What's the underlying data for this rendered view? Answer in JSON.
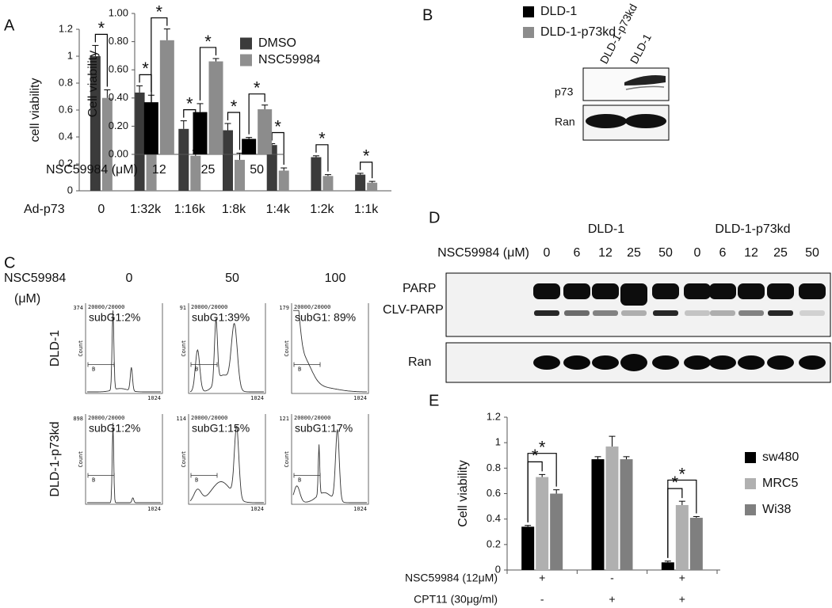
{
  "panel_labels": [
    "A",
    "B",
    "C",
    "D",
    "E"
  ],
  "chart_data": [
    {
      "type": "bar",
      "y_label": "cell viability",
      "x_label": "Ad-p73",
      "categories": [
        "0",
        "1:32k",
        "1:16k",
        "1:8k",
        "1:4k",
        "1:2k",
        "1:1k"
      ],
      "series": [
        {
          "name": "DMSO",
          "color": "#3b3b3b",
          "values": [
            1.0,
            0.73,
            0.46,
            0.45,
            0.34,
            0.25,
            0.12
          ],
          "errors": [
            0.08,
            0.05,
            0.06,
            0.05,
            0.01,
            0.01,
            0.01
          ]
        },
        {
          "name": "NSC59984",
          "color": "#8f8f8f",
          "values": [
            0.69,
            0.48,
            0.26,
            0.23,
            0.15,
            0.11,
            0.06
          ],
          "errors": [
            0.06,
            0.08,
            0.04,
            0.05,
            0.02,
            0.01,
            0.01
          ]
        }
      ],
      "ylim": [
        0,
        1.2
      ],
      "yticks": [
        0,
        0.2,
        0.4,
        0.6,
        0.8,
        1,
        1.2
      ],
      "annotations": [
        "*",
        "*",
        "*",
        "*",
        "*",
        "*",
        "*"
      ]
    },
    {
      "type": "bar",
      "y_label": "Cell viability",
      "x_label": "NSC59984 (μM)",
      "categories": [
        "12",
        "25",
        "50"
      ],
      "series": [
        {
          "name": "DLD-1",
          "color": "#000000",
          "values": [
            0.37,
            0.3,
            0.11
          ],
          "errors": [
            0.05,
            0.06,
            0.01
          ]
        },
        {
          "name": "DLD-1-p73kd",
          "color": "#8c8c8c",
          "values": [
            0.81,
            0.66,
            0.32
          ],
          "errors": [
            0.08,
            0.02,
            0.03
          ]
        }
      ],
      "ylim": [
        0,
        1
      ],
      "yticks": [
        {
          "value": 0,
          "label": "0.00"
        },
        {
          "value": 0.2,
          "label": "0.20"
        },
        {
          "value": 0.4,
          "label": "0.40"
        },
        {
          "value": 0.6,
          "label": "0.60"
        },
        {
          "value": 0.8,
          "label": "0.80"
        },
        {
          "value": 1,
          "label": "1.00"
        }
      ],
      "annotations": [
        "*",
        "*",
        "*"
      ]
    },
    {
      "type": "bar",
      "y_label": "Cell viability",
      "categories": [
        null,
        null,
        null
      ],
      "treatments": [
        {
          "name": "NSC59984  (12μM)",
          "signs": [
            "+",
            "-",
            "+"
          ]
        },
        {
          "name": "CPT11 (30μg/ml)",
          "signs": [
            "-",
            "+",
            "+"
          ]
        }
      ],
      "series": [
        {
          "name": "sw480",
          "color": "#000000",
          "values": [
            0.34,
            0.87,
            0.06
          ],
          "errors": [
            0.01,
            0.02,
            0.01
          ]
        },
        {
          "name": "MRC5",
          "color": "#b0b0b0",
          "values": [
            0.73,
            0.97,
            0.51
          ],
          "errors": [
            0.02,
            0.08,
            0.03
          ]
        },
        {
          "name": "Wi38",
          "color": "#7f7f7f",
          "values": [
            0.6,
            0.87,
            0.41
          ],
          "errors": [
            0.03,
            0.02,
            0.01
          ]
        }
      ],
      "ylim": [
        0,
        1.2
      ],
      "yticks": [
        0,
        0.2,
        0.4,
        0.6,
        0.8,
        1,
        1.2
      ],
      "annotations": [
        "*",
        "*",
        "*",
        "*"
      ]
    }
  ],
  "blot_b": {
    "lanes": [
      "DLD-1-p73kd",
      "DLD-1"
    ],
    "rows": [
      "p73",
      "Ran"
    ]
  },
  "flow_c": {
    "treatment": "NSC59984",
    "unit": "(μM)",
    "doses": [
      0,
      50,
      100
    ],
    "rows": [
      "DLD-1",
      "DLD-1-p73kd"
    ],
    "events_label": "20000/20000",
    "count_label": "Count",
    "gate_label": "B",
    "xmax_label": "1024",
    "panels": [
      {
        "subg1": "subG1:2%",
        "ymax": "374"
      },
      {
        "subg1": "subG1:39%",
        "ymax": "91"
      },
      {
        "subg1": "subG1: 89%",
        "ymax": "179"
      },
      {
        "subg1": "subG1:2%",
        "ymax": "898"
      },
      {
        "subg1": "subG1:15%",
        "ymax": "114"
      },
      {
        "subg1": "subG1:17%",
        "ymax": "121"
      }
    ]
  },
  "blot_d": {
    "groups": [
      "DLD-1",
      "DLD-1-p73kd"
    ],
    "treatment": "NSC59984 (μM)",
    "doses": [
      [
        0,
        6,
        12,
        25,
        50
      ],
      [
        0,
        6,
        12,
        25,
        50
      ]
    ],
    "rows": [
      "PARP",
      "CLV-PARP",
      "Ran"
    ]
  }
}
